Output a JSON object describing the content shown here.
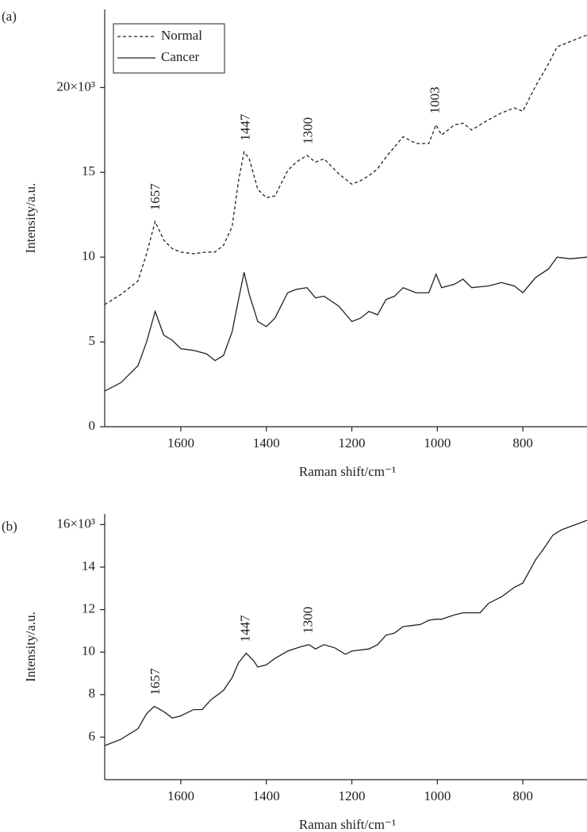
{
  "chart_data": [
    {
      "type": "line",
      "panel_label": "(a)",
      "xlabel": "Raman shift/cm⁻¹",
      "ylabel": "Intensity/a.u.",
      "x": [
        1778,
        1740,
        1700,
        1680,
        1660,
        1640,
        1620,
        1600,
        1570,
        1540,
        1520,
        1500,
        1480,
        1465,
        1452,
        1440,
        1420,
        1400,
        1380,
        1350,
        1330,
        1305,
        1285,
        1265,
        1230,
        1200,
        1180,
        1160,
        1140,
        1120,
        1100,
        1080,
        1050,
        1020,
        1003,
        990,
        960,
        940,
        920,
        880,
        850,
        820,
        800,
        770,
        740,
        720,
        690,
        650
      ],
      "series": [
        {
          "name": "Normal",
          "color": "#222222",
          "dashed": true,
          "values": [
            7.2,
            7.8,
            8.6,
            10.2,
            12.1,
            11.0,
            10.5,
            10.3,
            10.2,
            10.3,
            10.3,
            10.7,
            11.8,
            14.5,
            16.2,
            15.8,
            14.0,
            13.5,
            13.6,
            15.1,
            15.6,
            16.0,
            15.6,
            15.8,
            14.9,
            14.3,
            14.5,
            14.8,
            15.2,
            15.9,
            16.5,
            17.1,
            16.7,
            16.7,
            17.8,
            17.2,
            17.8,
            17.9,
            17.5,
            18.1,
            18.5,
            18.8,
            18.6,
            20.1,
            21.4,
            22.4,
            22.7,
            23.1
          ]
        },
        {
          "name": "Cancer",
          "color": "#222222",
          "dashed": false,
          "values": [
            2.1,
            2.6,
            3.6,
            5.0,
            6.8,
            5.4,
            5.1,
            4.6,
            4.5,
            4.3,
            3.9,
            4.2,
            5.6,
            7.5,
            9.1,
            7.8,
            6.2,
            5.9,
            6.4,
            7.9,
            8.1,
            8.2,
            7.6,
            7.7,
            7.1,
            6.2,
            6.4,
            6.8,
            6.6,
            7.5,
            7.7,
            8.2,
            7.9,
            7.9,
            9.0,
            8.2,
            8.4,
            8.7,
            8.2,
            8.3,
            8.5,
            8.3,
            7.9,
            8.8,
            9.3,
            10.0,
            9.9,
            10.0
          ]
        }
      ],
      "annotations": [
        "1657",
        "1447",
        "1300",
        "1003"
      ],
      "xlim": [
        1778,
        650
      ],
      "xticks": [
        1600,
        1400,
        1200,
        1000,
        800
      ],
      "ylim": [
        0,
        24.6
      ],
      "yticks": [
        0,
        5,
        10,
        15,
        {
          "value": 20,
          "label": "20×10³"
        }
      ],
      "legend": "upper left"
    },
    {
      "type": "line",
      "panel_label": "(b)",
      "xlabel": "Raman shift/cm⁻¹",
      "ylabel": "Intensity/a.u.",
      "x": [
        1778,
        1740,
        1700,
        1680,
        1662,
        1640,
        1620,
        1600,
        1570,
        1550,
        1530,
        1500,
        1480,
        1465,
        1447,
        1430,
        1420,
        1400,
        1380,
        1350,
        1320,
        1300,
        1285,
        1265,
        1240,
        1215,
        1200,
        1160,
        1140,
        1120,
        1100,
        1080,
        1060,
        1040,
        1020,
        1003,
        990,
        960,
        940,
        900,
        880,
        850,
        820,
        800,
        770,
        750,
        730,
        710,
        690,
        670,
        650
      ],
      "series": [
        {
          "color": "#222222",
          "dashed": false,
          "values": [
            5.6,
            5.9,
            6.4,
            7.1,
            7.45,
            7.2,
            6.9,
            7.0,
            7.3,
            7.3,
            7.75,
            8.2,
            8.8,
            9.5,
            9.95,
            9.6,
            9.3,
            9.4,
            9.7,
            10.05,
            10.25,
            10.35,
            10.15,
            10.35,
            10.2,
            9.9,
            10.05,
            10.15,
            10.35,
            10.8,
            10.9,
            11.2,
            11.25,
            11.3,
            11.5,
            11.55,
            11.55,
            11.75,
            11.85,
            11.85,
            12.3,
            12.6,
            13.05,
            13.25,
            14.35,
            14.9,
            15.5,
            15.75,
            15.9,
            16.05,
            16.2
          ]
        }
      ],
      "annotations": [
        "1657",
        "1447",
        "1300"
      ],
      "xlim": [
        1778,
        650
      ],
      "xticks": [
        1600,
        1400,
        1200,
        1000,
        800
      ],
      "ylim": [
        4.0,
        16.5
      ],
      "yticks": [
        6,
        8,
        10,
        12,
        14,
        {
          "value": 16,
          "label": "16×10³"
        }
      ]
    }
  ]
}
